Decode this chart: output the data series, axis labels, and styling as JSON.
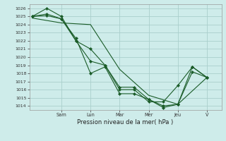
{
  "background_color": "#ceecea",
  "grid_color": "#aacfcc",
  "line_color": "#1a5c28",
  "xlabel": "Pression niveau de la mer( hPa )",
  "ylim": [
    1013.5,
    1026.5
  ],
  "yticks": [
    1014,
    1015,
    1016,
    1017,
    1018,
    1019,
    1020,
    1021,
    1022,
    1023,
    1024,
    1025,
    1026
  ],
  "day_labels": [
    "Sam",
    "Lun",
    "Mar",
    "Mer",
    "Jeu",
    "V"
  ],
  "series": [
    {
      "x": [
        0.0,
        0.5,
        1.0,
        1.5,
        2.0,
        2.5,
        3.0,
        3.5,
        4.0,
        4.5,
        5.0,
        5.5,
        6.0
      ],
      "y": [
        1025.0,
        1026.0,
        1025.0,
        1022.0,
        1021.0,
        1019.0,
        1016.0,
        1016.0,
        1014.5,
        1014.5,
        1016.5,
        1018.8,
        1017.5
      ],
      "marker": true
    },
    {
      "x": [
        0.0,
        0.5,
        1.0,
        1.5,
        2.0,
        2.5,
        3.0,
        3.5,
        4.0,
        4.5,
        5.0,
        5.5,
        6.0
      ],
      "y": [
        1025.0,
        1025.3,
        1024.7,
        1022.0,
        1019.5,
        1019.0,
        1016.3,
        1016.3,
        1014.8,
        1013.8,
        1014.2,
        1018.8,
        1017.5
      ],
      "marker": true
    },
    {
      "x": [
        0.0,
        0.5,
        1.0,
        1.5,
        2.0,
        2.5,
        3.0,
        3.5,
        4.0,
        4.5,
        5.0,
        5.5,
        6.0
      ],
      "y": [
        1025.0,
        1025.1,
        1024.7,
        1022.3,
        1018.0,
        1018.8,
        1015.5,
        1015.5,
        1014.8,
        1014.0,
        1014.2,
        1018.2,
        1017.5
      ],
      "marker": true
    },
    {
      "x": [
        0.0,
        1.0,
        2.0,
        3.0,
        4.0,
        5.0,
        6.0
      ],
      "y": [
        1024.8,
        1024.2,
        1024.0,
        1018.5,
        1015.3,
        1014.2,
        1017.5
      ],
      "marker": false
    }
  ]
}
